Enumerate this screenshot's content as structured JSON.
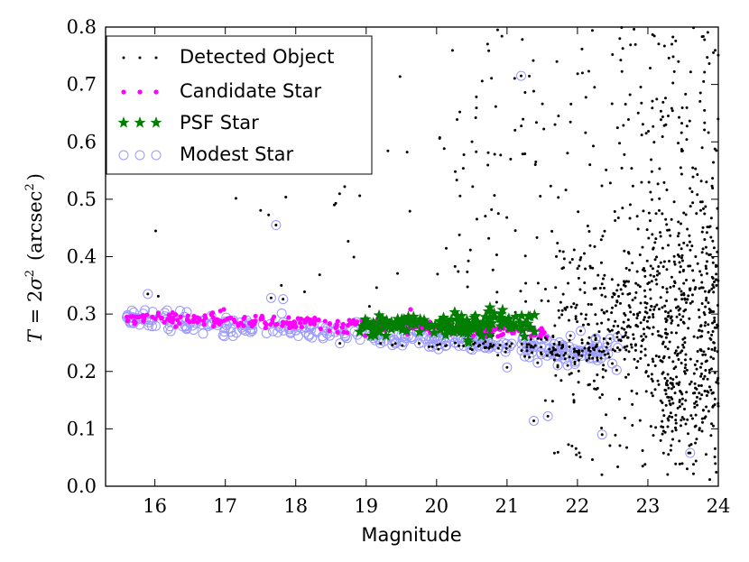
{
  "chart_data": {
    "type": "scatter",
    "title": "",
    "xlabel": "Magnitude",
    "ylabel": {
      "t": "T",
      "eq": " = 2",
      "sigma": "σ",
      "sup2": "2",
      "unit": "(arcsec",
      "unit_sup": "2",
      "close": ")"
    },
    "xlim": [
      15.3,
      24
    ],
    "ylim": [
      0.0,
      0.8
    ],
    "xticks": [
      "16",
      "17",
      "18",
      "19",
      "20",
      "21",
      "22",
      "23",
      "24"
    ],
    "yticks": [
      "0.0",
      "0.1",
      "0.2",
      "0.3",
      "0.4",
      "0.5",
      "0.6",
      "0.7",
      "0.8"
    ],
    "legend": {
      "location": "top-left",
      "entries": [
        "Detected Object",
        "Candidate Star",
        "PSF Star",
        "Modest Star"
      ]
    },
    "colors": {
      "detected": "#000000",
      "candidate": "#ff00ff",
      "psf": "#007f00",
      "modest": "#9999ff"
    },
    "series": [
      {
        "name": "Candidate Star",
        "marker": "dot",
        "locus": {
          "x_range": [
            15.6,
            21.6
          ],
          "y_at_start": 0.295,
          "y_at_end": 0.27,
          "scatter": 0.006
        }
      },
      {
        "name": "PSF Star",
        "marker": "star",
        "locus": {
          "x_range": [
            18.9,
            21.4
          ],
          "y_at_start": 0.282,
          "y_at_end": 0.28,
          "scatter": 0.008
        }
      },
      {
        "name": "Modest Star",
        "marker": "circle",
        "locus": {
          "x_range": [
            15.6,
            22.6
          ],
          "y_at_start": 0.295,
          "y_at_end": 0.23,
          "scatter": 0.008
        }
      },
      {
        "name": "Detected Object",
        "marker": "small-dot",
        "density": "sparse below 21, dense cloud at 21.5–24 spanning 0.0–0.8 centred near 0.3"
      }
    ],
    "outliers": [
      {
        "x": 15.9,
        "y": 0.335,
        "label": "modest"
      },
      {
        "x": 17.72,
        "y": 0.455,
        "label": "modest"
      },
      {
        "x": 17.65,
        "y": 0.328,
        "label": "modest"
      },
      {
        "x": 17.82,
        "y": 0.326,
        "label": "modest"
      },
      {
        "x": 21.2,
        "y": 0.715,
        "label": "modest"
      },
      {
        "x": 21.0,
        "y": 0.207,
        "label": "modest"
      },
      {
        "x": 20.95,
        "y": 0.25,
        "label": "modest"
      },
      {
        "x": 21.38,
        "y": 0.114,
        "label": "modest"
      },
      {
        "x": 21.58,
        "y": 0.122,
        "label": "modest"
      },
      {
        "x": 22.35,
        "y": 0.09,
        "label": "modest"
      },
      {
        "x": 23.6,
        "y": 0.058,
        "label": "modest"
      },
      {
        "x": 19.63,
        "y": 0.308,
        "label": "candidate"
      }
    ]
  }
}
